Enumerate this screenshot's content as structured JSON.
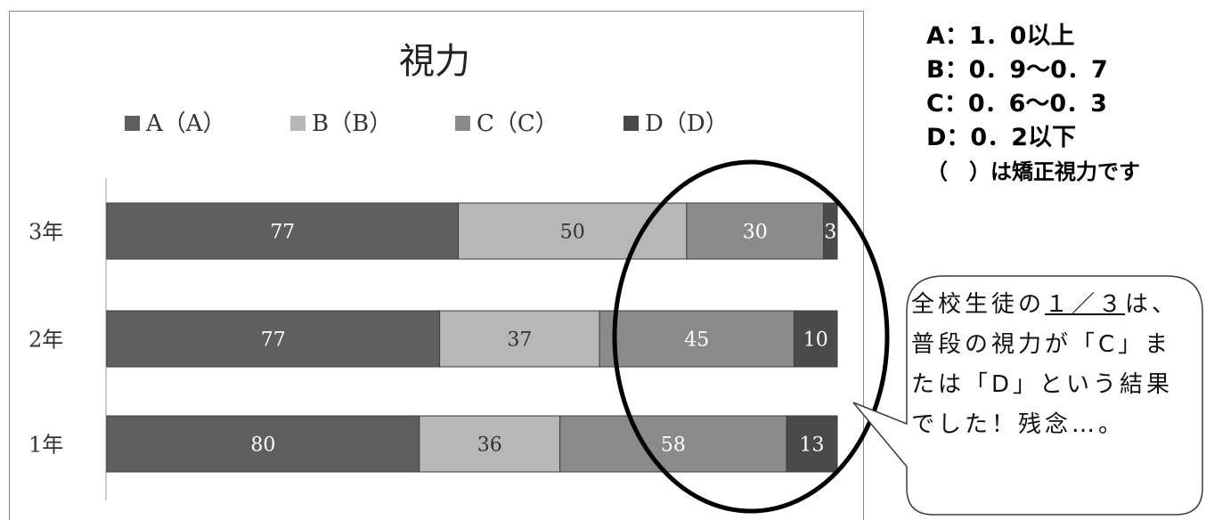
{
  "chart_data": {
    "type": "bar",
    "orientation": "horizontal",
    "stacked": true,
    "title": "視力",
    "categories": [
      "3年",
      "2年",
      "1年"
    ],
    "series": [
      {
        "name": "A（A）",
        "values": [
          77,
          77,
          80
        ],
        "color": "#5f5f5f",
        "label_color": "#ffffff"
      },
      {
        "name": "B（B）",
        "values": [
          50,
          37,
          36
        ],
        "color": "#b7b7b7",
        "label_color": "#333333"
      },
      {
        "name": "C（C）",
        "values": [
          30,
          45,
          58
        ],
        "color": "#8a8a8a",
        "label_color": "#ffffff"
      },
      {
        "name": "D（D）",
        "values": [
          3,
          10,
          13
        ],
        "color": "#4a4a4a",
        "label_color": "#ffffff"
      }
    ],
    "legend_position": "top",
    "grid": false
  },
  "key": {
    "lines": [
      "A：1．0以上",
      "B：0．9～0．7",
      "C：0．6～0．3",
      "D：0．2以下"
    ],
    "note": "（　）は矯正視力です"
  },
  "callout": {
    "before": "全校生徒の",
    "highlight": "１／３",
    "after": "は、普段の視力が「C」または「D」という結果でした！残念…。"
  }
}
